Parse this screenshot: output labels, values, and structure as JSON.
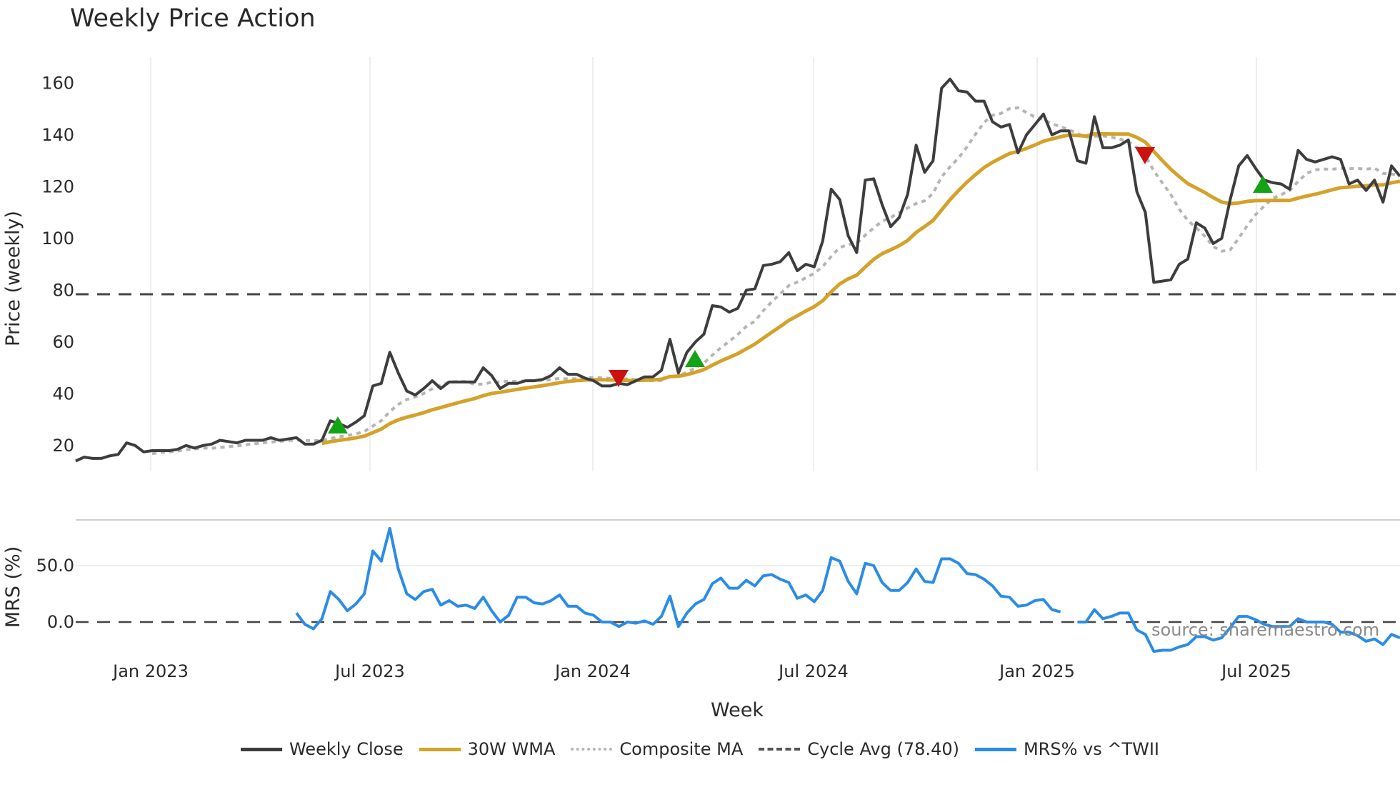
{
  "title": "Weekly Price Action",
  "legend": [
    {
      "label": "Weekly Close",
      "color": "#3d3d3d",
      "style": "solid"
    },
    {
      "label": "30W WMA",
      "color": "#d4a22a",
      "style": "solid"
    },
    {
      "label": "Composite MA",
      "color": "#b5b5b5",
      "style": "dotted"
    },
    {
      "label": "Cycle Avg (78.40)",
      "color": "#555555",
      "style": "dashed"
    },
    {
      "label": "MRS% vs ^TWII",
      "color": "#2b8ce6",
      "style": "solid"
    }
  ],
  "watermark": "source: sharemaestro.com",
  "chart_data": [
    {
      "type": "line",
      "title": "Weekly Price Action",
      "xlabel": "Week",
      "ylabel": "Price (weekly)",
      "ylim": [
        10,
        170
      ],
      "yticks": [
        20,
        40,
        60,
        80,
        100,
        120,
        140,
        160
      ],
      "xticks": [
        "Jan 2023",
        "Jul 2023",
        "Jan 2024",
        "Jul 2024",
        "Jan 2025",
        "Jul 2025"
      ],
      "grid": "vertical",
      "cycle_avg": 78.4,
      "series": [
        {
          "name": "Weekly Close",
          "x_range": [
            "Oct 2022",
            "Oct 2025"
          ],
          "values": [
            14,
            15.5,
            15,
            15,
            16,
            16.5,
            21,
            20,
            17.5,
            18,
            18,
            18,
            18.5,
            20,
            19,
            20,
            20.5,
            22,
            21.5,
            21,
            22,
            22,
            22,
            23,
            22,
            22.5,
            23,
            20.5,
            20.5,
            22,
            29.5,
            28.5,
            27,
            29,
            31.5,
            43,
            44,
            56,
            48,
            41,
            39.5,
            42,
            45,
            42,
            44.5,
            44.5,
            44.5,
            44.5,
            50,
            47,
            42,
            44,
            44,
            45,
            45,
            45.5,
            47,
            50,
            47.5,
            47.5,
            46,
            45,
            43,
            43,
            44,
            43.5,
            45,
            46.5,
            46.5,
            49,
            61,
            48,
            56,
            60,
            63,
            74,
            73.5,
            71.5,
            73,
            80,
            80.5,
            89.5,
            90,
            91,
            94.5,
            87.5,
            90,
            89,
            99,
            119,
            115,
            101,
            94.5,
            122.5,
            123,
            113,
            104.5,
            108,
            117,
            136,
            125.5,
            130,
            158,
            161.5,
            157,
            156.5,
            153,
            153,
            145,
            143,
            144,
            133,
            140,
            144,
            148,
            140,
            141.5,
            141.5,
            130,
            129,
            147,
            135,
            135,
            136,
            138,
            118,
            110,
            83,
            83.5,
            84,
            90,
            92,
            106,
            104,
            98,
            100,
            115,
            128,
            132,
            127,
            122.5,
            121.5,
            121,
            119,
            134,
            130.5,
            129.5,
            130.5,
            131.5,
            130.5,
            121,
            122.5,
            118.5,
            122.5,
            114,
            128,
            124
          ]
        },
        {
          "name": "30W WMA",
          "values": "smooth weighted average starting Jun 2023 at ~21, crossing 45 by Jan 2024, ~80 in Aug 2024, peak ~141 Feb 2025, trough ~114 Jun 2025, ~122 end"
        },
        {
          "name": "Composite MA",
          "values": "dotted smoother of close, peak ~139 Feb 2025, trough ~108 Jun 2025, ~121 end"
        },
        {
          "name": "Cycle Avg",
          "value": 78.4
        }
      ],
      "signals": [
        {
          "type": "buy",
          "date": "Jun 2023",
          "price": 24
        },
        {
          "type": "sell",
          "date": "Feb 2024",
          "price": 44
        },
        {
          "type": "buy",
          "date": "Apr 2024",
          "price": 51
        },
        {
          "type": "sell",
          "date": "Apr 2025",
          "price": 131
        },
        {
          "type": "buy",
          "date": "Jul 2025",
          "price": 119
        }
      ]
    },
    {
      "type": "line",
      "title": "",
      "ylabel": "MRS (%)",
      "yticks": [
        "0.0",
        "50.0"
      ],
      "series": [
        {
          "name": "MRS% vs ^TWII",
          "values": [
            8,
            -2,
            -6,
            3,
            27,
            20,
            10,
            16,
            25,
            63,
            54,
            83,
            47,
            25,
            20,
            27,
            29,
            15,
            19,
            14,
            15,
            12,
            22,
            10,
            0,
            6,
            22,
            22,
            17,
            16,
            19,
            24,
            14,
            14,
            8,
            6,
            0,
            0,
            -4,
            0,
            -1,
            1,
            -2,
            5,
            23,
            -4,
            8,
            16,
            20,
            34,
            39,
            30,
            30,
            37,
            32,
            41,
            42,
            38,
            35,
            21,
            24,
            18,
            28,
            57,
            54,
            36,
            25,
            52,
            50,
            35,
            28,
            28,
            35,
            47,
            36,
            35,
            56,
            56,
            52,
            43,
            42,
            38,
            32,
            23,
            22,
            14,
            15,
            19,
            20,
            11,
            9,
            null,
            0,
            0,
            11,
            3,
            5,
            8,
            8,
            -7,
            -11,
            -26,
            -25,
            -25,
            -22,
            -20,
            -13,
            -13,
            -16,
            -14,
            -5,
            5,
            5,
            2,
            -2,
            -4,
            -4,
            -4,
            3,
            0,
            0,
            0,
            -2,
            -9,
            -9,
            -12,
            -17,
            -15,
            -20,
            -11,
            -14
          ]
        },
        {
          "name": "zero line",
          "value": 0.0
        }
      ]
    }
  ]
}
